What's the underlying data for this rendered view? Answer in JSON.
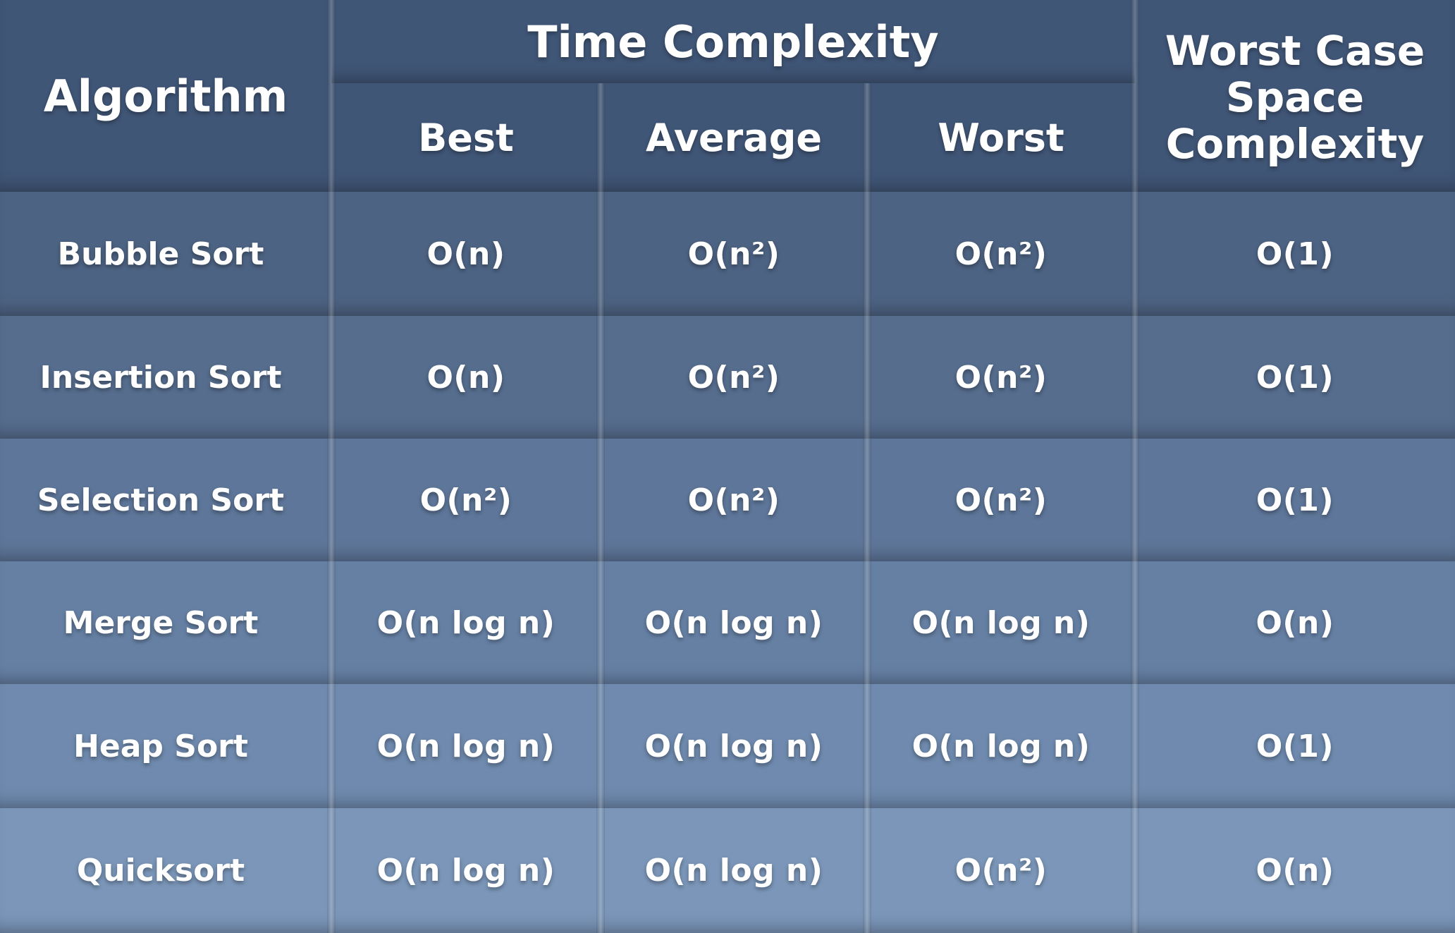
{
  "chart_data": {
    "type": "table",
    "header": {
      "algorithm": "Algorithm",
      "time_complexity": "Time Complexity",
      "best": "Best",
      "average": "Average",
      "worst": "Worst",
      "space": "Worst Case\nSpace\nComplexity"
    },
    "rows": [
      {
        "algorithm": "Bubble Sort",
        "best": "O(n)",
        "average": "O(n²)",
        "worst": "O(n²)",
        "space": "O(1)"
      },
      {
        "algorithm": "Insertion Sort",
        "best": "O(n)",
        "average": "O(n²)",
        "worst": "O(n²)",
        "space": "O(1)"
      },
      {
        "algorithm": "Selection Sort",
        "best": "O(n²)",
        "average": "O(n²)",
        "worst": "O(n²)",
        "space": "O(1)"
      },
      {
        "algorithm": "Merge Sort",
        "best": "O(n log n)",
        "average": "O(n log n)",
        "worst": "O(n log n)",
        "space": "O(n)"
      },
      {
        "algorithm": "Heap Sort",
        "best": "O(n log n)",
        "average": "O(n log n)",
        "worst": "O(n log n)",
        "space": "O(1)"
      },
      {
        "algorithm": "Quicksort",
        "best": "O(n log n)",
        "average": "O(n log n)",
        "worst": "O(n²)",
        "space": "O(n)"
      }
    ],
    "colors": {
      "header": "#405677",
      "row_colors": [
        "#4d6383",
        "#566d8e",
        "#5e7699",
        "#6680a4",
        "#6f8aae",
        "#7b96b9"
      ],
      "text": "#ffffff"
    }
  }
}
